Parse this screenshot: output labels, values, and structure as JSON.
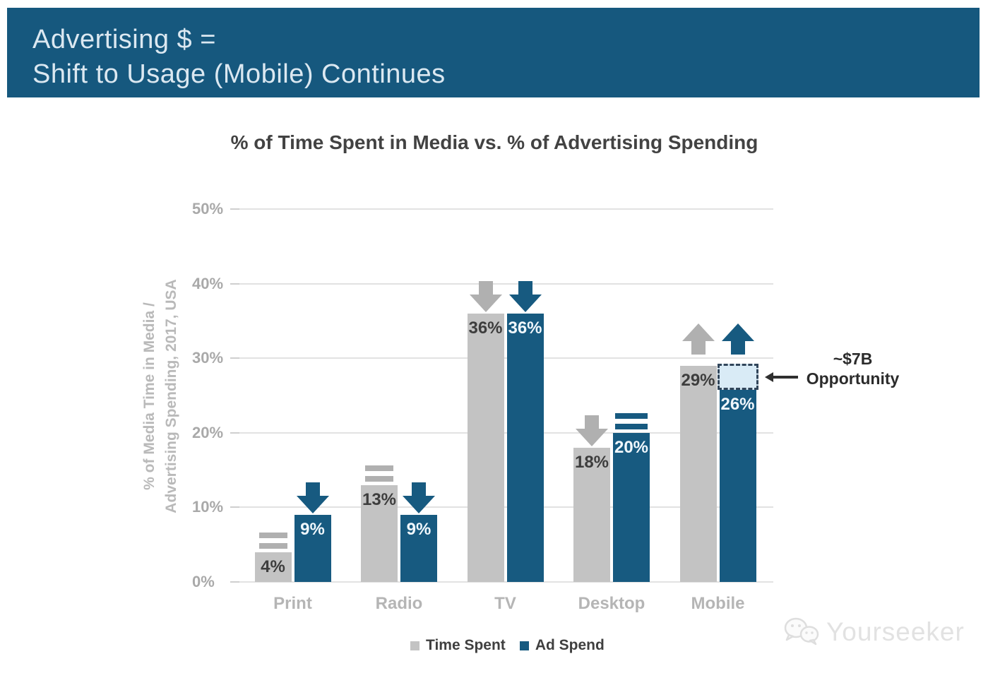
{
  "header": {
    "line1": "Advertising $ =",
    "line2": "Shift to Usage (Mobile) Continues"
  },
  "watermark": {
    "text": "Yourseeker",
    "icon": "chat-bubbles-logo"
  },
  "chart_data": {
    "type": "bar",
    "title": "% of Time Spent in Media vs. % of Advertising Spending",
    "categories": [
      "Print",
      "Radio",
      "TV",
      "Desktop",
      "Mobile"
    ],
    "series": [
      {
        "name": "Time Spent",
        "values": [
          4,
          13,
          36,
          18,
          29
        ]
      },
      {
        "name": "Ad Spend",
        "values": [
          9,
          9,
          36,
          20,
          26
        ]
      }
    ],
    "value_label_suffix": "%",
    "ylabel_lines": [
      "% of Media Time in Media /",
      "Advertising Spending, 2017, USA"
    ],
    "yticks": [
      "0%",
      "10%",
      "20%",
      "30%",
      "40%",
      "50%"
    ],
    "ylim": [
      0,
      50
    ],
    "grid": true,
    "legend_position": "bottom",
    "trends": [
      {
        "time_spent": "flat",
        "ad_spend": "down"
      },
      {
        "time_spent": "flat",
        "ad_spend": "down"
      },
      {
        "time_spent": "down",
        "ad_spend": "down"
      },
      {
        "time_spent": "down",
        "ad_spend": "flat"
      },
      {
        "time_spent": "up",
        "ad_spend": "up"
      }
    ],
    "annotation": {
      "line1": "~$7B",
      "line2": "Opportunity",
      "category": "Mobile",
      "series": "Ad Spend",
      "from_value": 26,
      "to_value": 29
    },
    "colors": {
      "time_spent": "#c3c3c3",
      "ad_spend": "#175a80",
      "trend_gray": "#b0b0b0",
      "grid": "#e2e2e2",
      "value_on_gray": "#3d3d3d",
      "value_on_blue": "#f0f7fc",
      "annotation_box_fill": "#d9ebf6",
      "annotation_box_border": "#31455a",
      "header_bg": "#16587e"
    }
  }
}
